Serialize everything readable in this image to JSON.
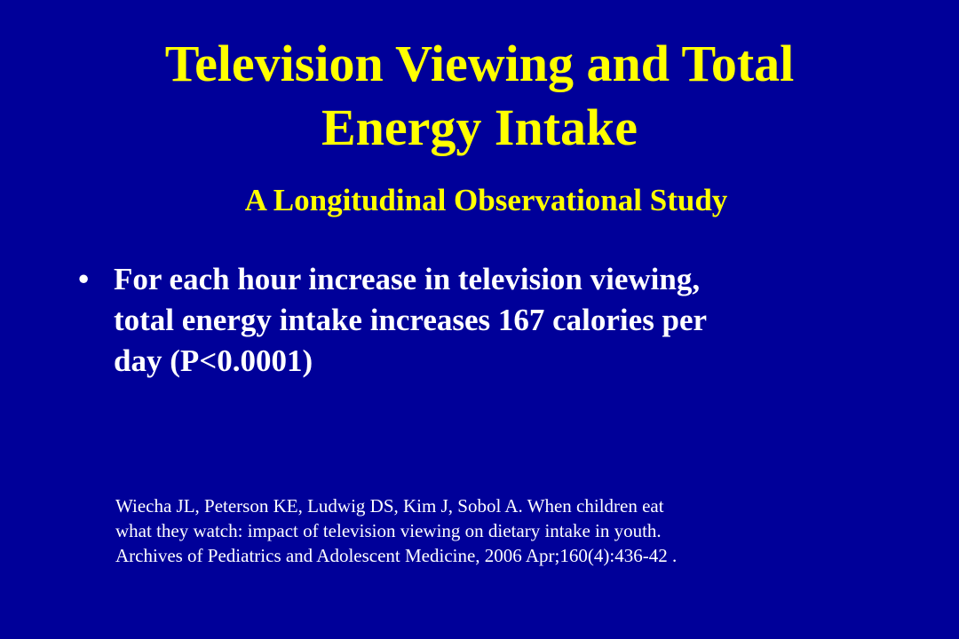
{
  "slide": {
    "title_line1": "Television Viewing and Total",
    "title_line2": "Energy Intake",
    "subtitle": "A Longitudinal Observational Study",
    "bullets": [
      {
        "marker": "•",
        "line1": "For each hour increase in television viewing,",
        "line2": "total energy intake increases 167 calories per",
        "line3": "day (P<0.0001)"
      }
    ],
    "citation": {
      "line1": "Wiecha JL, Peterson KE, Ludwig DS, Kim J, Sobol A. When children eat",
      "line2": "what they watch: impact of television viewing on dietary intake in youth.",
      "line3": "Archives of Pediatrics and Adolescent Medicine, 2006 Apr;160(4):436-42 ."
    }
  },
  "colors": {
    "background": "#000099",
    "title": "#ffff00",
    "body_text": "#ffffff"
  }
}
